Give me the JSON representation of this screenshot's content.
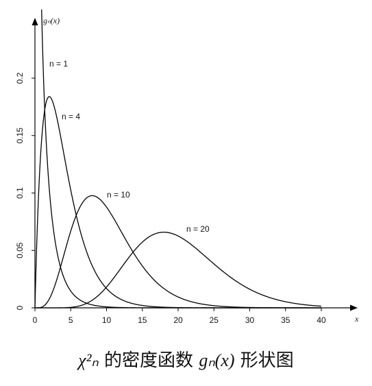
{
  "chart_data": {
    "type": "line",
    "title": "",
    "caption_math": "χ²ₙ",
    "caption_chinese": "的密度函数",
    "caption_formula": "gₙ(x)",
    "caption_suffix": "形状图",
    "xlabel": "x",
    "ylabel": "gₙ(x)",
    "xlim": [
      0,
      40
    ],
    "ylim": [
      0,
      0.23
    ],
    "xticks": [
      0,
      5,
      10,
      15,
      20,
      25,
      30,
      35,
      40
    ],
    "xtick_labels": [
      "0",
      "5",
      "10",
      "15",
      "20",
      "25",
      "30",
      "35",
      "40"
    ],
    "yticks": [
      0,
      0.05,
      0.1,
      0.15,
      0.2
    ],
    "ytick_labels": [
      "0",
      "0.05",
      "0.1",
      "0.15",
      "0.2"
    ],
    "grid": false,
    "series": [
      {
        "name": "n = 1",
        "df": 1,
        "x": [
          1,
          2,
          3,
          4,
          5,
          6,
          8,
          10,
          12
        ],
        "y": [
          0.242,
          0.104,
          0.051,
          0.027,
          0.015,
          0.008,
          0.003,
          0.001,
          0.0004
        ]
      },
      {
        "name": "n = 4",
        "df": 4,
        "x": [
          0,
          1,
          2,
          3,
          4,
          5,
          6,
          8,
          10,
          12,
          15
        ],
        "y": [
          0,
          0.152,
          0.184,
          0.167,
          0.135,
          0.103,
          0.075,
          0.037,
          0.017,
          0.007,
          0.002
        ]
      },
      {
        "name": "n = 10",
        "df": 10,
        "x": [
          0,
          2,
          4,
          6,
          8,
          10,
          12,
          14,
          16,
          18,
          20,
          25,
          30
        ],
        "y": [
          0,
          0.015,
          0.072,
          0.096,
          0.098,
          0.088,
          0.068,
          0.049,
          0.034,
          0.022,
          0.013,
          0.003,
          0.001
        ]
      },
      {
        "name": "n = 20",
        "df": 20,
        "x": [
          2,
          5,
          8,
          10,
          12,
          14,
          16,
          18,
          20,
          22,
          24,
          26,
          28,
          30,
          32,
          35,
          38,
          40
        ],
        "y": [
          0,
          0.001,
          0.012,
          0.023,
          0.036,
          0.05,
          0.06,
          0.065,
          0.063,
          0.056,
          0.046,
          0.035,
          0.025,
          0.017,
          0.011,
          0.005,
          0.002,
          0.001
        ]
      }
    ]
  }
}
